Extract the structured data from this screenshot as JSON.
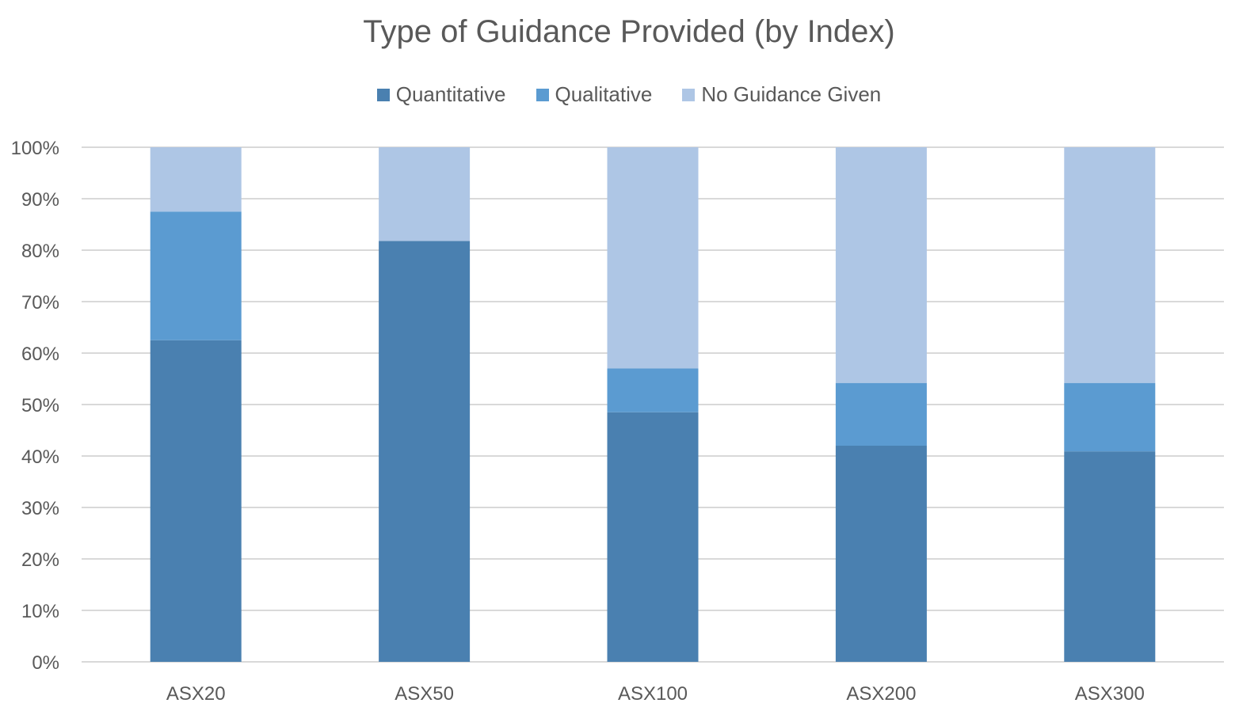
{
  "chart_data": {
    "type": "bar",
    "stacked": true,
    "title": "Type of Guidance Provided (by Index)",
    "xlabel": "",
    "ylabel": "",
    "categories": [
      "ASX20",
      "ASX50",
      "ASX100",
      "ASX200",
      "ASX300"
    ],
    "series": [
      {
        "name": "Quantitative",
        "color": "#4a80b0",
        "values": [
          62.5,
          81.8,
          48.5,
          42.0,
          40.9
        ]
      },
      {
        "name": "Qualitative",
        "color": "#5b9bd1",
        "values": [
          25.0,
          0,
          8.5,
          12.2,
          13.3
        ]
      },
      {
        "name": "No Guidance Given",
        "color": "#aec6e5",
        "values": [
          12.5,
          18.2,
          43.0,
          45.8,
          45.8
        ]
      }
    ],
    "ylim": [
      0,
      100
    ],
    "yticks": [
      0,
      10,
      20,
      30,
      40,
      50,
      60,
      70,
      80,
      90,
      100
    ],
    "ytick_labels": [
      "0%",
      "10%",
      "20%",
      "30%",
      "40%",
      "50%",
      "60%",
      "70%",
      "80%",
      "90%",
      "100%"
    ],
    "grid": true,
    "legend_position": "top"
  }
}
